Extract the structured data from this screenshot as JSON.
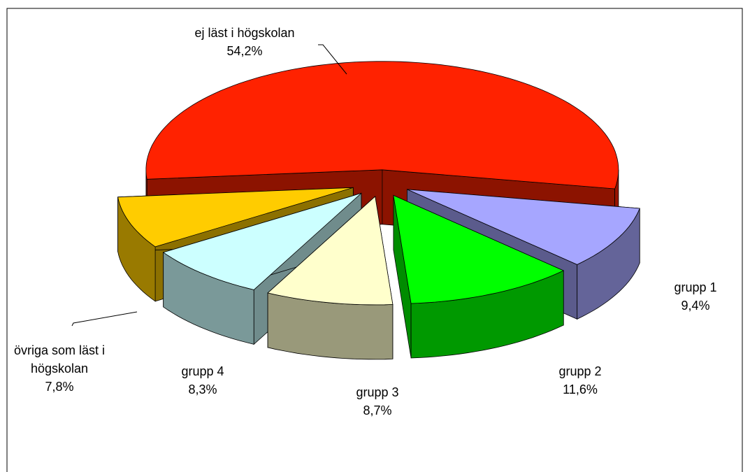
{
  "chart_data": {
    "type": "pie",
    "categories": [
      "ej läst i högskolan",
      "grupp 1",
      "grupp 2",
      "grupp 3",
      "grupp 4",
      "övriga som läst i högskolan"
    ],
    "values": [
      54.2,
      9.4,
      11.6,
      8.7,
      8.3,
      7.8
    ],
    "value_labels": [
      "54,2%",
      "9,4%",
      "11,6%",
      "8,7%",
      "8,3%",
      "7,8%"
    ],
    "colors": [
      "#ff2200",
      "#a6a6ff",
      "#00ff00",
      "#ffffcc",
      "#ccffff",
      "#ffcc00"
    ]
  }
}
